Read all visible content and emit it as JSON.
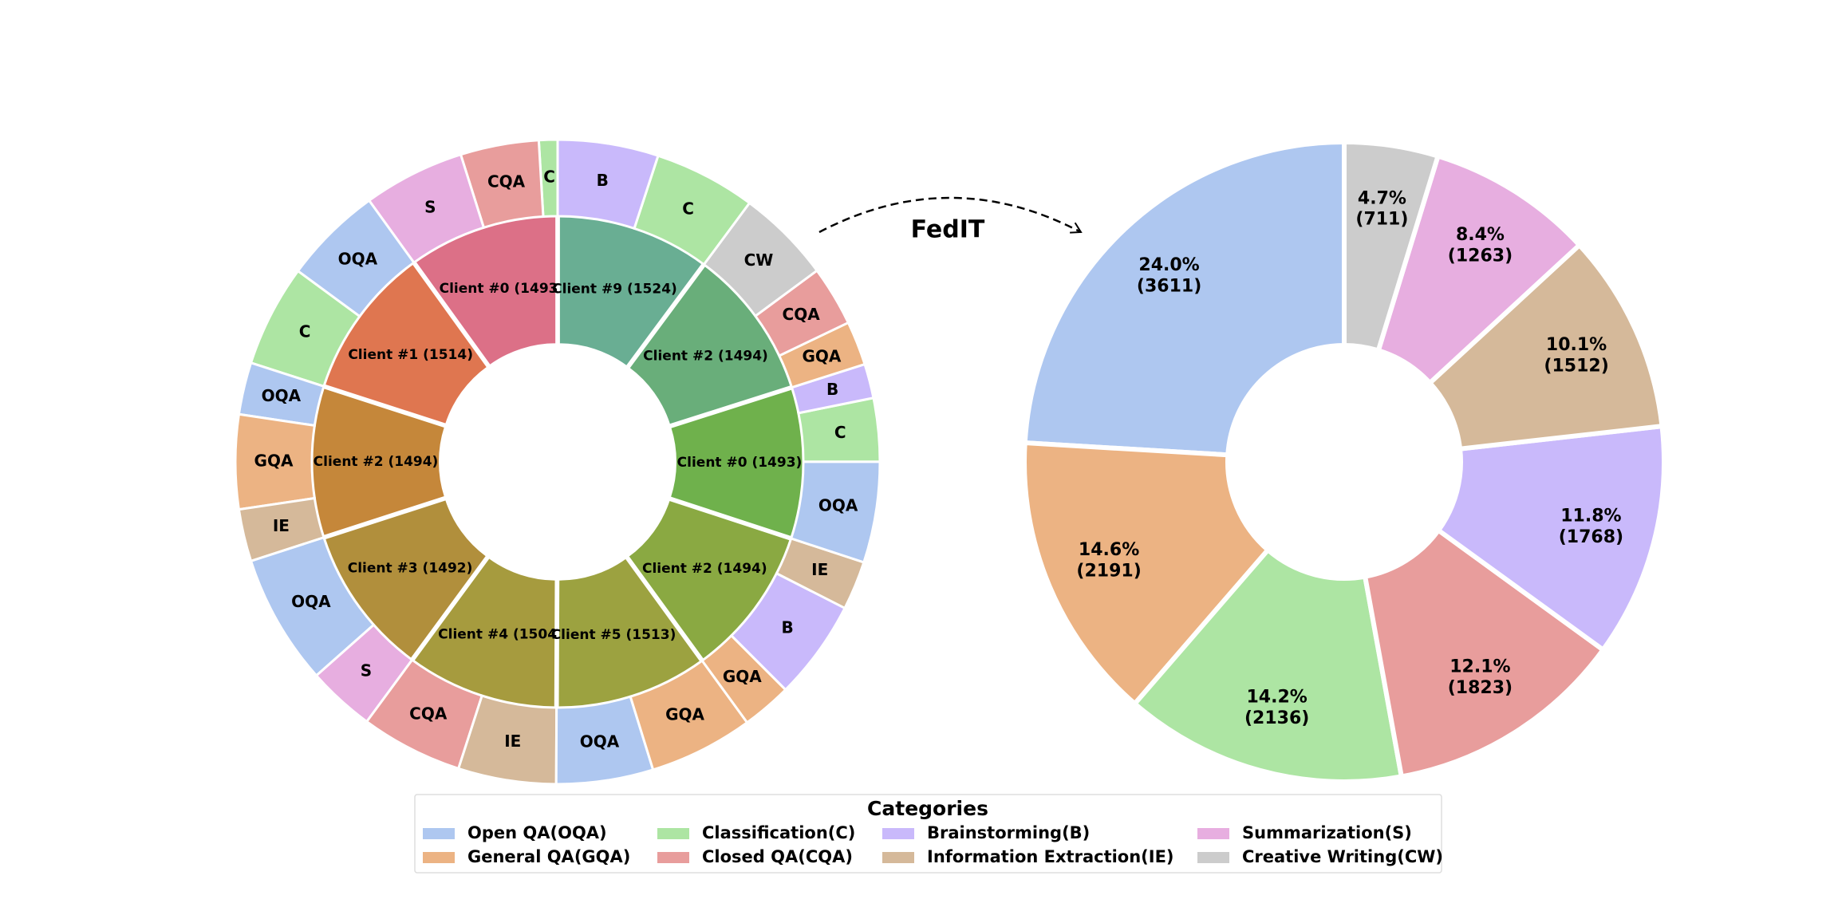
{
  "annotation": "FedIT",
  "chart_data": [
    {
      "type": "nested-donut",
      "inner": {
        "values": [
          1493,
          1514,
          1494,
          1492,
          1504,
          1513,
          1494,
          1493,
          1494,
          1524
        ],
        "value_labels": [
          "Client #0 (1493)",
          "Client #1 (1514)",
          "Client #2 (1494)",
          "Client #3 (1492)",
          "Client #4 (1504)",
          "Client #5 (1513)",
          "Client #2 (1494)",
          "Client #0 (1493)",
          "Client #2 (1494)",
          "Client #9 (1524)"
        ],
        "colors": [
          "#dc7087",
          "#df7650",
          "#c5873a",
          "#b18f3c",
          "#a69b3e",
          "#9ca240",
          "#8aa942",
          "#6fb14c",
          "#69ae7a",
          "#69ae93"
        ]
      },
      "outer": {
        "labels": [
          "C",
          "CQA",
          "S",
          "OQA",
          "C",
          "OQA",
          "GQA",
          "IE",
          "OQA",
          "S",
          "CQA",
          "IE",
          "OQA",
          "GQA",
          "GQA",
          "B",
          "IE",
          "OQA",
          "C",
          "B",
          "GQA",
          "CQA",
          "CW",
          "C",
          "B"
        ],
        "values": [
          140,
          590,
          763,
          746,
          768,
          392,
          709,
          393,
          985,
          507,
          767,
          737,
          729,
          784,
          375,
          751,
          368,
          759,
          476,
          258,
          332,
          451,
          711,
          766,
          758
        ],
        "colors": [
          "#ade5a3",
          "#e89d9c",
          "#e7aee0",
          "#aec7f0",
          "#ade5a3",
          "#aec7f0",
          "#ecb383",
          "#d5b99a",
          "#aec7f0",
          "#e7aee0",
          "#e89d9c",
          "#d5b99a",
          "#aec7f0",
          "#ecb383",
          "#ecb383",
          "#c9b9fb",
          "#d5b99a",
          "#aec7f0",
          "#ade5a3",
          "#c9b9fb",
          "#ecb383",
          "#e89d9c",
          "#cccccc",
          "#ade5a3",
          "#c9b9fb"
        ]
      }
    },
    {
      "type": "donut",
      "categories": [
        "Open QA(OQA)",
        "General QA(GQA)",
        "Classification(C)",
        "Closed QA(CQA)",
        "Brainstorming(B)",
        "Information Extraction(IE)",
        "Summarization(S)",
        "Creative Writing(CW)"
      ],
      "values": [
        3611,
        2191,
        2136,
        1823,
        1768,
        1512,
        1263,
        711
      ],
      "value_labels": [
        "24.0%\n(3611)",
        "14.6%\n(2191)",
        "14.2%\n(2136)",
        "12.1%\n(1823)",
        "11.8%\n(1768)",
        "10.1%\n(1512)",
        "8.4%\n(1263)",
        "4.7%\n(711)"
      ],
      "colors": [
        "#aec7f0",
        "#ecb383",
        "#ade5a3",
        "#e89d9c",
        "#c9b9fb",
        "#d5b99a",
        "#e7aee0",
        "#cccccc"
      ],
      "legend_title": "Categories"
    }
  ]
}
